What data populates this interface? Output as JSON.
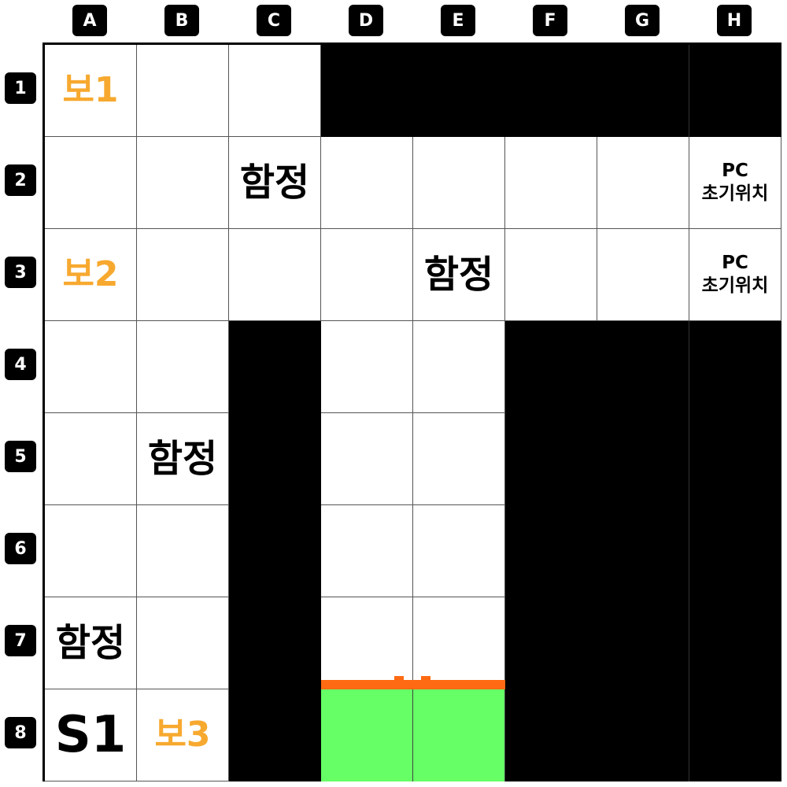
{
  "columns": [
    "A",
    "B",
    "C",
    "D",
    "E",
    "F",
    "G",
    "H"
  ],
  "rows": [
    "1",
    "2",
    "3",
    "4",
    "5",
    "6",
    "7",
    "8"
  ],
  "labels": {
    "treasure_1": "보1",
    "treasure_2": "보2",
    "treasure_3": "보3",
    "trap": "함정",
    "start": "S1",
    "pc_line1": "PC",
    "pc_line2": "초기위치"
  },
  "grid": [
    [
      "treasure_1",
      "floor",
      "floor",
      "wall",
      "wall",
      "wall",
      "wall",
      "wall"
    ],
    [
      "floor",
      "floor",
      "trap",
      "floor",
      "floor",
      "floor",
      "floor",
      "pc"
    ],
    [
      "treasure_2",
      "floor",
      "floor",
      "floor",
      "trap",
      "floor",
      "floor",
      "pc"
    ],
    [
      "floor",
      "floor",
      "wall",
      "floor",
      "floor",
      "wall",
      "wall",
      "wall"
    ],
    [
      "floor",
      "trap",
      "wall",
      "floor",
      "floor",
      "wall",
      "wall",
      "wall"
    ],
    [
      "floor",
      "floor",
      "wall",
      "floor",
      "floor",
      "wall",
      "wall",
      "wall"
    ],
    [
      "trap",
      "floor",
      "wall",
      "floor",
      "floor",
      "wall",
      "wall",
      "wall"
    ],
    [
      "start",
      "treasure_3",
      "wall",
      "goal",
      "goal",
      "wall",
      "wall",
      "wall"
    ]
  ],
  "colors": {
    "treasure": "#f7a92f",
    "goal": "#66ff66",
    "door": "#ff6a13",
    "wall": "#000000",
    "floor": "#ffffff"
  }
}
